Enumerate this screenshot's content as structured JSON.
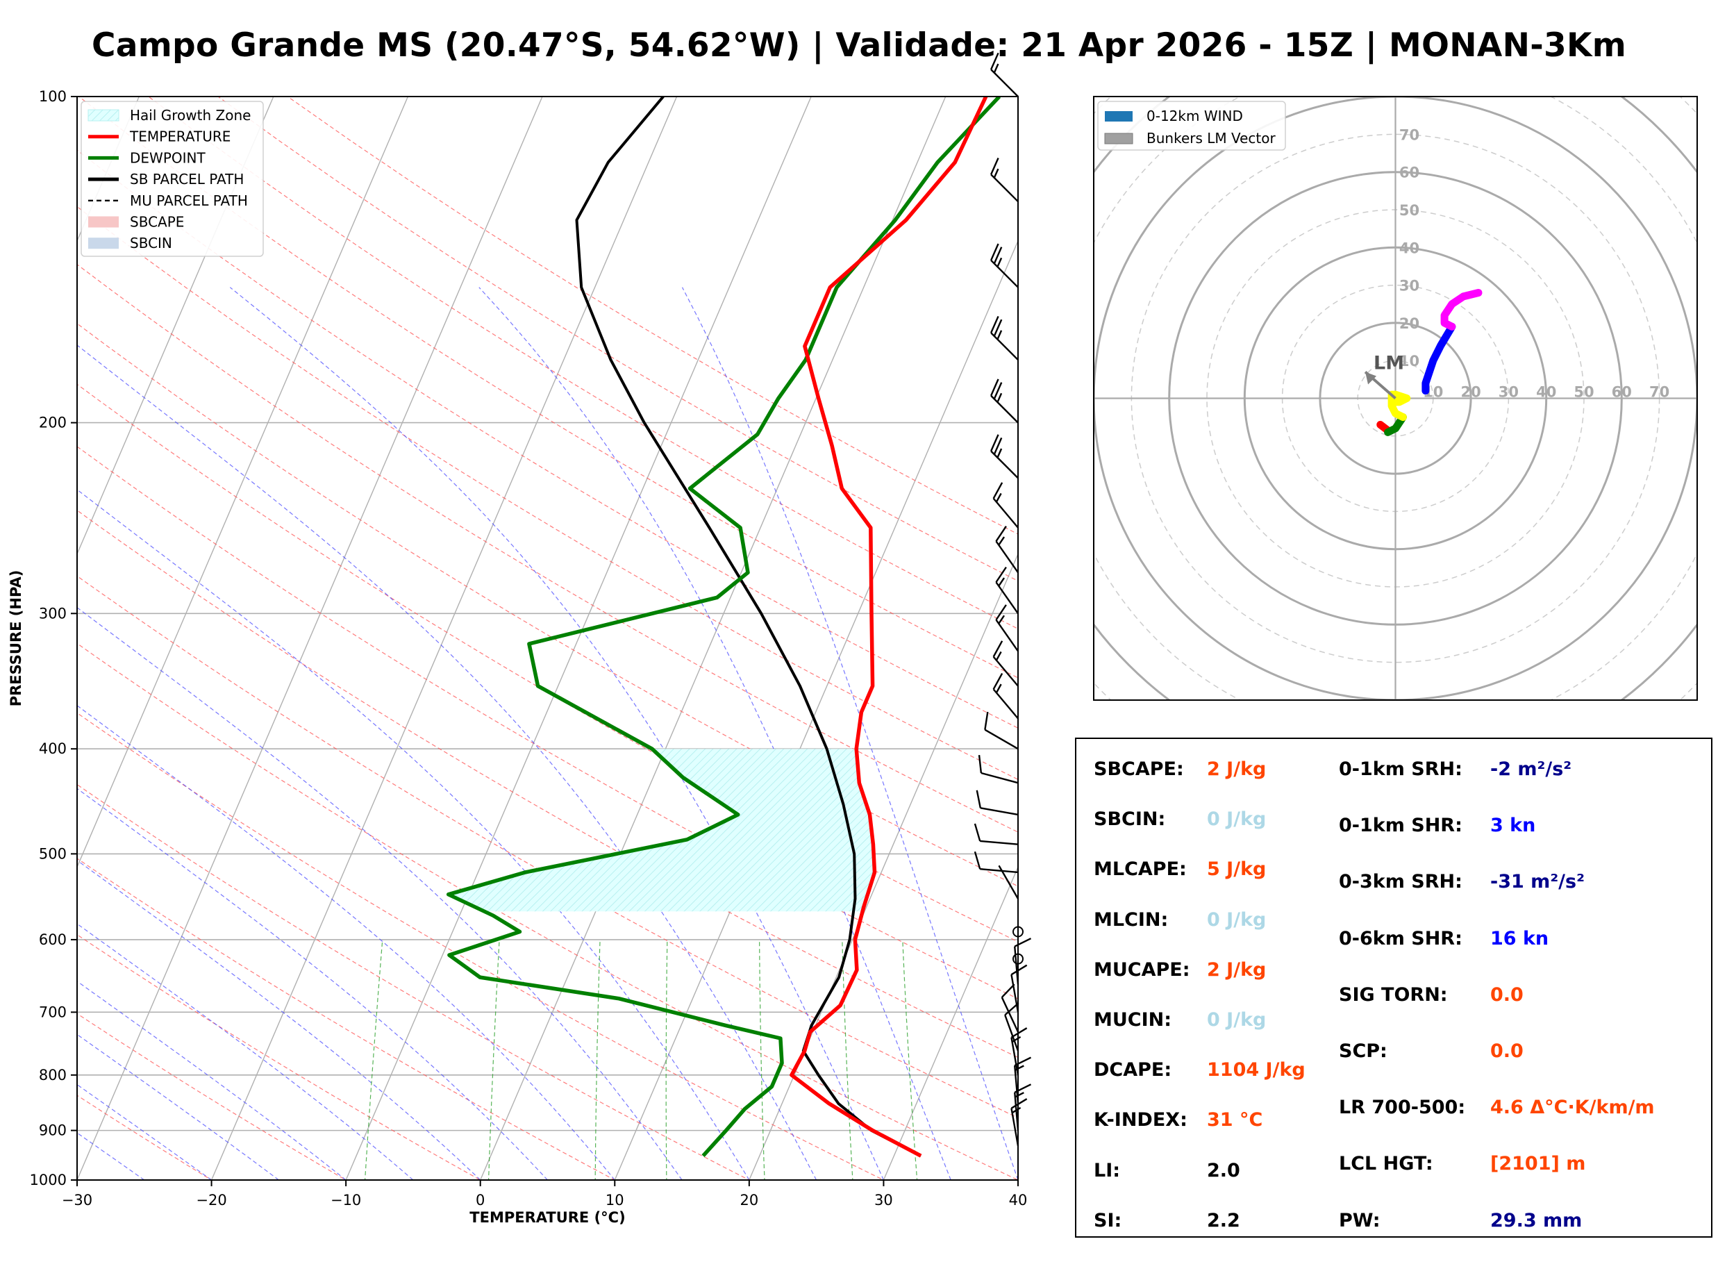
{
  "title": "Campo Grande MS (20.47°S, 54.62°W) | Validade: 21 Apr 2026 - 15Z | MONAN-3Km",
  "skewt": {
    "xlabel": "TEMPERATURE (°C)",
    "ylabel": "PRESSURE (HPA)",
    "x_ticks": [
      "−30",
      "−20",
      "−10",
      "0",
      "10",
      "20",
      "30",
      "40"
    ],
    "y_ticks": [
      "100",
      "200",
      "300",
      "400",
      "500",
      "600",
      "700",
      "800",
      "900",
      "1000"
    ],
    "legend": [
      {
        "label": "Hail Growth Zone",
        "color": "#e0ffff",
        "kind": "hatch"
      },
      {
        "label": "TEMPERATURE",
        "color": "#ff0000",
        "kind": "line"
      },
      {
        "label": "DEWPOINT",
        "color": "#008000",
        "kind": "line"
      },
      {
        "label": "SB PARCEL PATH",
        "color": "#000000",
        "kind": "line"
      },
      {
        "label": "MU PARCEL PATH",
        "color": "#000000",
        "kind": "dash"
      },
      {
        "label": "SBCAPE",
        "color": "#f7c6c6",
        "kind": "patch"
      },
      {
        "label": "SBCIN",
        "color": "#c9d8ea",
        "kind": "patch"
      }
    ]
  },
  "hodograph": {
    "legend": [
      {
        "label": "0-12km WIND",
        "color": "#1f77b4"
      },
      {
        "label": "Bunkers LM Vector",
        "color": "#a0a0a0"
      }
    ],
    "ring_labels": [
      "10",
      "20",
      "30",
      "40",
      "50",
      "60",
      "70"
    ],
    "lm_label": "LM"
  },
  "indices": {
    "left": [
      {
        "label": "SBCAPE:",
        "value": "2 J/kg",
        "color": "#ff4500"
      },
      {
        "label": "SBCIN:",
        "value": "0 J/kg",
        "color": "#add8e6"
      },
      {
        "label": "MLCAPE:",
        "value": "5 J/kg",
        "color": "#ff4500"
      },
      {
        "label": "MLCIN:",
        "value": "0 J/kg",
        "color": "#add8e6"
      },
      {
        "label": "MUCAPE:",
        "value": "2 J/kg",
        "color": "#ff4500"
      },
      {
        "label": "MUCIN:",
        "value": "0 J/kg",
        "color": "#add8e6"
      },
      {
        "label": "DCAPE:",
        "value": "1104 J/kg",
        "color": "#ff4500"
      },
      {
        "label": "K-INDEX:",
        "value": "31 °C",
        "color": "#ff4500"
      },
      {
        "label": "LI:",
        "value": "2.0",
        "color": "#000000"
      },
      {
        "label": "SI:",
        "value": "2.2",
        "color": "#000000"
      }
    ],
    "right": [
      {
        "label": "0-1km SRH:",
        "value": "-2 m²/s²",
        "color": "#00008b"
      },
      {
        "label": "0-1km SHR:",
        "value": "3 kn",
        "color": "#0000ff"
      },
      {
        "label": "0-3km SRH:",
        "value": "-31 m²/s²",
        "color": "#00008b"
      },
      {
        "label": "0-6km SHR:",
        "value": "16 kn",
        "color": "#0000ff"
      },
      {
        "label": "SIG TORN:",
        "value": "0.0",
        "color": "#ff4500"
      },
      {
        "label": "SCP:",
        "value": "0.0",
        "color": "#ff4500"
      },
      {
        "label": "LR 700-500:",
        "value": "4.6 Δ°C·K/km/m",
        "color": "#ff4500"
      },
      {
        "label": "LCL HGT:",
        "value": "[2101] m",
        "color": "#ff4500"
      },
      {
        "label": "PW:",
        "value": "29.3 mm",
        "color": "#00008b"
      }
    ]
  },
  "chart_data": [
    {
      "type": "line",
      "subtype": "skew-t log-p",
      "xlabel": "TEMPERATURE (°C)",
      "ylabel": "PRESSURE (HPA)",
      "xlim": [
        -30,
        40
      ],
      "ylim": [
        1000,
        100
      ],
      "y_scale": "log",
      "grid": true,
      "legend_position": "top-left",
      "series": [
        {
          "name": "TEMPERATURE",
          "color": "#ff0000",
          "points": [
            [
              950,
              32.0
            ],
            [
              900,
              27.6
            ],
            [
              850,
              23.5
            ],
            [
              800,
              19.8
            ],
            [
              760,
              20.0
            ],
            [
              730,
              19.8
            ],
            [
              690,
              21.2
            ],
            [
              640,
              21.3
            ],
            [
              600,
              20.2
            ],
            [
              560,
              19.8
            ],
            [
              520,
              19.5
            ],
            [
              490,
              18.5
            ],
            [
              460,
              17.3
            ],
            [
              430,
              15.5
            ],
            [
              400,
              14.2
            ],
            [
              370,
              13.4
            ],
            [
              350,
              13.4
            ],
            [
              300,
              11.0
            ],
            [
              250,
              8.2
            ],
            [
              230,
              4.8
            ],
            [
              210,
              2.7
            ],
            [
              190,
              0.2
            ],
            [
              170,
              -2.5
            ],
            [
              150,
              -2.5
            ],
            [
              130,
              1.0
            ],
            [
              115,
              2.8
            ],
            [
              100,
              3.0
            ]
          ]
        },
        {
          "name": "DEWPOINT",
          "color": "#008000",
          "points": [
            [
              950,
              15.8
            ],
            [
              900,
              16.7
            ],
            [
              860,
              17.4
            ],
            [
              820,
              18.7
            ],
            [
              780,
              18.7
            ],
            [
              740,
              17.8
            ],
            [
              720,
              13.3
            ],
            [
              680,
              4.5
            ],
            [
              650,
              -6.5
            ],
            [
              620,
              -9.5
            ],
            [
              590,
              -5.0
            ],
            [
              570,
              -7.5
            ],
            [
              545,
              -11.5
            ],
            [
              520,
              -6.5
            ],
            [
              485,
              4.5
            ],
            [
              460,
              7.5
            ],
            [
              425,
              2.2
            ],
            [
              400,
              -1.0
            ],
            [
              350,
              -11.5
            ],
            [
              320,
              -13.5
            ],
            [
              290,
              -1.0
            ],
            [
              275,
              0.5
            ],
            [
              250,
              -1.5
            ],
            [
              230,
              -6.5
            ],
            [
              205,
              -3.2
            ],
            [
              190,
              -2.8
            ],
            [
              175,
              -2.0
            ],
            [
              150,
              -2.0
            ],
            [
              130,
              0.2
            ],
            [
              115,
              1.5
            ],
            [
              100,
              4.0
            ]
          ]
        },
        {
          "name": "SB PARCEL PATH",
          "color": "#000000",
          "points": [
            [
              950,
              32.0
            ],
            [
              900,
              27.5
            ],
            [
              850,
              24.2
            ],
            [
              800,
              21.8
            ],
            [
              760,
              19.9
            ],
            [
              720,
              19.7
            ],
            [
              650,
              20.2
            ],
            [
              600,
              19.8
            ],
            [
              550,
              18.9
            ],
            [
              500,
              17.4
            ],
            [
              450,
              15.0
            ],
            [
              400,
              12.0
            ],
            [
              350,
              8.0
            ],
            [
              300,
              2.8
            ],
            [
              250,
              -3.8
            ],
            [
              200,
              -12.0
            ],
            [
              175,
              -16.5
            ],
            [
              150,
              -21.0
            ],
            [
              130,
              -23.5
            ],
            [
              115,
              -23.0
            ],
            [
              100,
              -21.0
            ]
          ]
        }
      ],
      "hail_growth_zone": {
        "label": "Hail Growth Zone",
        "p_top": 400,
        "p_bottom": 565
      }
    },
    {
      "type": "line",
      "subtype": "hodograph",
      "ring_labels": [
        10,
        20,
        30,
        40,
        50,
        60,
        70
      ],
      "legend_position": "top-left",
      "series": [
        {
          "name": "0-12km WIND",
          "segments": [
            {
              "color": "#ff0000",
              "uv": [
                [
                  -4,
                  -7
                ],
                [
                  -2,
                  -8.5
                ]
              ]
            },
            {
              "color": "#008000",
              "uv": [
                [
                  -2,
                  -9
                ],
                [
                  0,
                  -8
                ],
                [
                  1,
                  -6.5
                ],
                [
                  2,
                  -5
                ]
              ]
            },
            {
              "color": "#ffff00",
              "uv": [
                [
                  2,
                  -5
                ],
                [
                  0,
                  -4
                ],
                [
                  -1,
                  -2
                ],
                [
                  -1,
                  1
                ],
                [
                  0,
                  1
                ],
                [
                  3,
                  0
                ],
                [
                  1,
                  -1
                ],
                [
                  -1,
                  -1
                ]
              ]
            },
            {
              "color": "#0000ff",
              "uv": [
                [
                  8,
                  2
                ],
                [
                  8,
                  4
                ],
                [
                  10,
                  10
                ],
                [
                  12,
                  14
                ],
                [
                  15,
                  19
                ]
              ]
            },
            {
              "color": "#ff00ff",
              "uv": [
                [
                  15,
                  19
                ],
                [
                  13,
                  20
                ],
                [
                  13,
                  22
                ],
                [
                  15,
                  25
                ],
                [
                  18,
                  27
                ],
                [
                  22,
                  28
                ]
              ]
            }
          ]
        },
        {
          "name": "Bunkers LM Vector",
          "uv": [
            [
              0,
              0
            ],
            [
              -8,
              7
            ]
          ],
          "label": "LM"
        }
      ]
    }
  ]
}
